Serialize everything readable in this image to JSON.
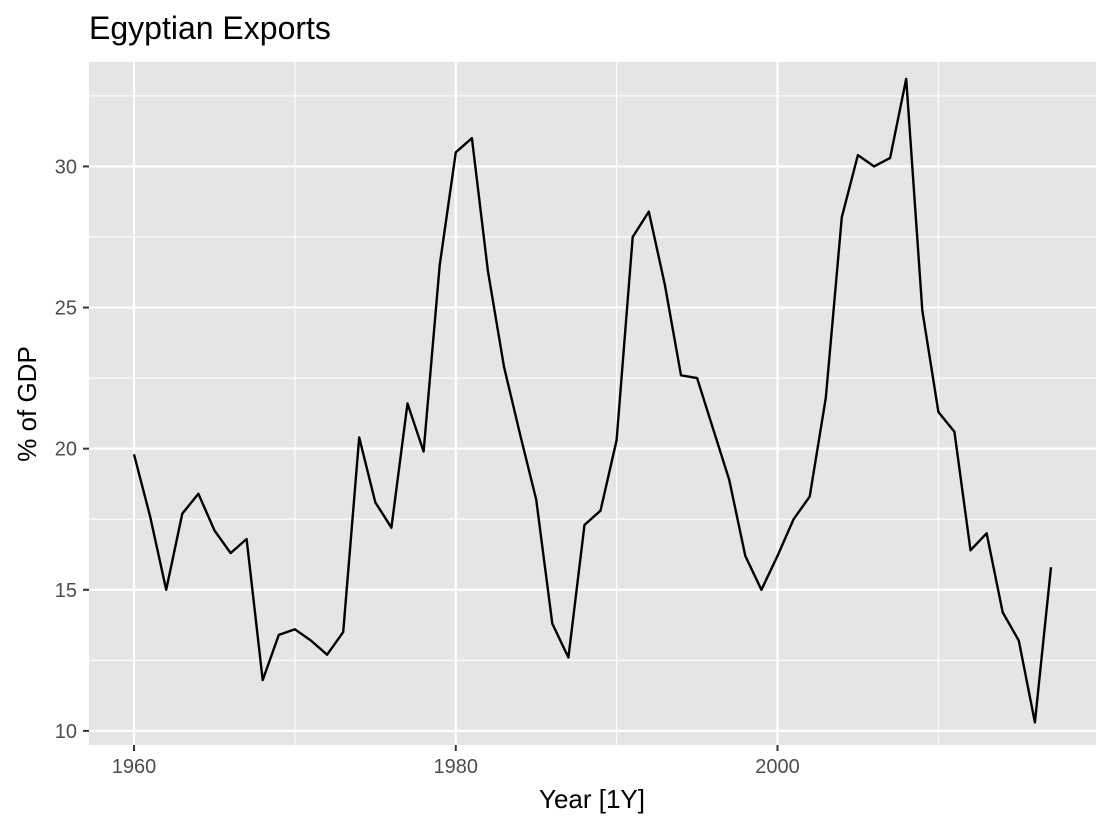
{
  "chart_data": {
    "type": "line",
    "title": "Egyptian Exports",
    "xlabel": "Year [1Y]",
    "ylabel": "% of GDP",
    "xlim": [
      1957.2,
      2019.8
    ],
    "ylim": [
      9.5,
      33.7
    ],
    "x_ticks": [
      1960,
      1980,
      2000
    ],
    "x_minor_ticks": [
      1970,
      1990,
      2010
    ],
    "y_ticks": [
      10,
      15,
      20,
      25,
      30
    ],
    "y_minor_ticks": [
      12.5,
      17.5,
      22.5,
      27.5,
      32.5
    ],
    "grid": true,
    "line_color": "#000000",
    "panel_color": "#e5e5e5",
    "x": [
      1960,
      1961,
      1962,
      1963,
      1964,
      1965,
      1966,
      1967,
      1968,
      1969,
      1970,
      1971,
      1972,
      1973,
      1974,
      1975,
      1976,
      1977,
      1978,
      1979,
      1980,
      1981,
      1982,
      1983,
      1984,
      1985,
      1986,
      1987,
      1988,
      1989,
      1990,
      1991,
      1992,
      1993,
      1994,
      1995,
      1996,
      1997,
      1998,
      1999,
      2000,
      2001,
      2002,
      2003,
      2004,
      2005,
      2006,
      2007,
      2008,
      2009,
      2010,
      2011,
      2012,
      2013,
      2014,
      2015,
      2016,
      2017
    ],
    "values": [
      19.8,
      17.6,
      15.0,
      17.7,
      18.4,
      17.1,
      16.3,
      16.8,
      11.8,
      13.4,
      13.6,
      13.2,
      12.7,
      13.5,
      20.4,
      18.1,
      17.2,
      21.6,
      19.9,
      26.5,
      30.5,
      31.0,
      26.3,
      22.9,
      20.5,
      18.2,
      13.8,
      12.6,
      17.3,
      17.8,
      20.3,
      27.5,
      28.4,
      25.8,
      22.6,
      22.5,
      20.7,
      18.9,
      16.2,
      15.0,
      16.2,
      17.5,
      18.3,
      21.8,
      28.2,
      30.4,
      30.0,
      30.3,
      33.1,
      24.9,
      21.3,
      20.6,
      16.4,
      17.0,
      14.2,
      13.2,
      10.3,
      15.8
    ]
  }
}
